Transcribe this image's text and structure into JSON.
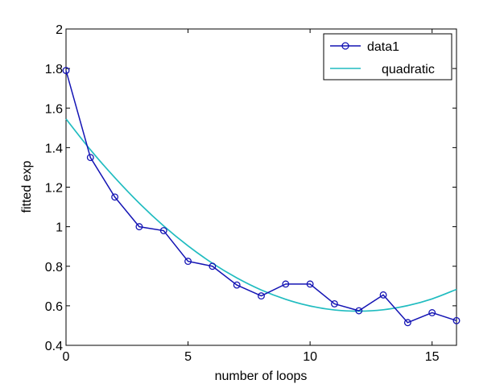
{
  "chart_data": {
    "type": "line",
    "title": "",
    "xlabel": "number of loops",
    "ylabel": "fitted exp",
    "xlim": [
      0,
      16
    ],
    "ylim": [
      0.4,
      2
    ],
    "xticks": [
      0,
      5,
      10,
      15
    ],
    "yticks": [
      0.4,
      0.6,
      0.8,
      1,
      1.2,
      1.4,
      1.6,
      1.8,
      2
    ],
    "grid": false,
    "legend": {
      "position": "top-right"
    },
    "colors": {
      "data1": "#1414b4",
      "quadratic": "#20bcc0"
    },
    "series": [
      {
        "name": "data1",
        "kind": "line-markers",
        "marker": "circle",
        "x": [
          0,
          1,
          2,
          3,
          4,
          5,
          6,
          7,
          8,
          9,
          10,
          11,
          12,
          13,
          14,
          15,
          16
        ],
        "y": [
          1.79,
          1.35,
          1.15,
          1.0,
          0.98,
          0.825,
          0.8,
          0.705,
          0.65,
          0.71,
          0.71,
          0.61,
          0.575,
          0.655,
          0.515,
          0.565,
          0.525
        ]
      },
      {
        "name": "quadratic",
        "kind": "line",
        "x": [
          0,
          1,
          2,
          3,
          4,
          5,
          6,
          7,
          8,
          9,
          10,
          11,
          12,
          13,
          14,
          15,
          16
        ],
        "y": [
          1.545,
          1.389,
          1.248,
          1.119,
          1.004,
          0.903,
          0.815,
          0.741,
          0.68,
          0.633,
          0.599,
          0.579,
          0.573,
          0.58,
          0.601,
          0.635,
          0.683
        ]
      }
    ]
  }
}
